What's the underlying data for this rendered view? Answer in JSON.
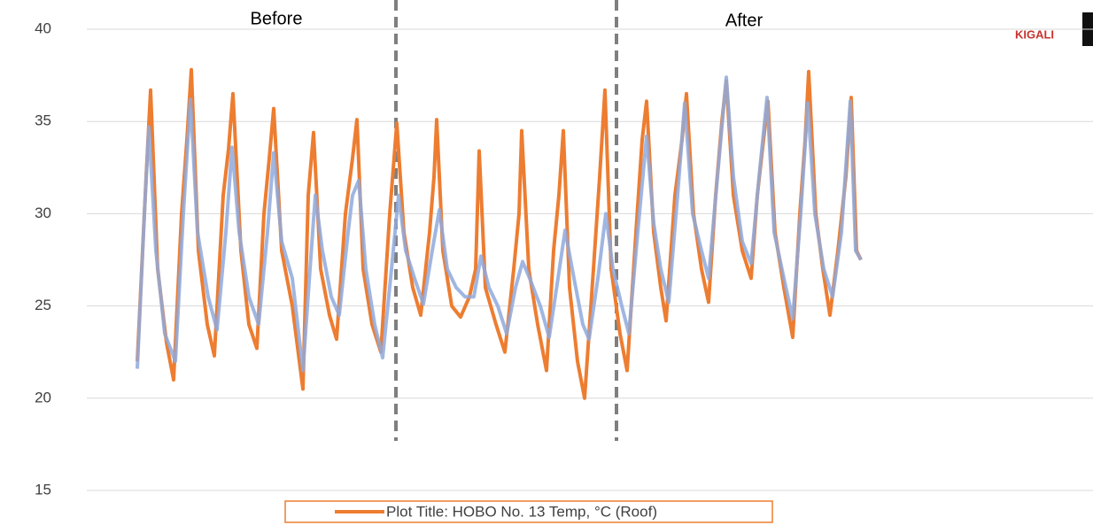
{
  "chart_data": {
    "type": "line",
    "annotations": [
      "Before",
      "After"
    ],
    "logo_text": "KIGALI",
    "legend": "Plot Title: HOBO No. 13 Temp, °C (Roof)",
    "legend_position": "bottom",
    "ylim": [
      15,
      40
    ],
    "yticks": [
      15,
      20,
      25,
      30,
      35,
      40
    ],
    "xlim": [
      -57,
      1079
    ],
    "vlines": [
      292,
      541
    ],
    "grid": true,
    "series": [
      {
        "name": "Plot Title: HOBO No. 13 Temp, °C (Roof)",
        "color": "#ed7d31",
        "x": [
          0,
          10,
          15,
          23,
          33,
          41,
          50,
          56,
          61,
          69,
          79,
          87,
          97,
          103,
          108,
          117,
          126,
          135,
          143,
          149,
          154,
          163,
          175,
          187,
          193,
          199,
          207,
          217,
          225,
          235,
          243,
          248,
          255,
          265,
          275,
          285,
          293,
          301,
          311,
          320,
          330,
          335,
          338,
          345,
          355,
          365,
          375,
          382,
          386,
          393,
          405,
          415,
          425,
          431,
          434,
          442,
          452,
          462,
          470,
          476,
          481,
          488,
          497,
          505,
          515,
          522,
          528,
          535,
          545,
          553,
          563,
          570,
          575,
          583,
          591,
          597,
          607,
          615,
          620,
          628,
          637,
          645,
          653,
          660,
          665,
          673,
          683,
          693,
          700,
          707,
          712,
          720,
          730,
          740,
          748,
          754,
          758,
          766,
          774,
          782,
          791,
          800,
          806,
          812,
          817
        ],
        "values": [
          22,
          32,
          36.7,
          27,
          23,
          21,
          30,
          34,
          37.8,
          28,
          24,
          22.3,
          31,
          33.5,
          36.5,
          28,
          24,
          22.7,
          30,
          33,
          35.7,
          28,
          25,
          20.5,
          31,
          34.4,
          27,
          24.5,
          23.2,
          30,
          33,
          35.1,
          27,
          24,
          22.5,
          30,
          34.9,
          29,
          26,
          24.5,
          29,
          32,
          35.1,
          28,
          25,
          24.4,
          25.5,
          27,
          33.4,
          26,
          24,
          22.5,
          27,
          30,
          34.5,
          27,
          24,
          21.5,
          28,
          31,
          34.5,
          26,
          22,
          20,
          27,
          32,
          36.7,
          27,
          23.5,
          21.5,
          29,
          34,
          36.1,
          29,
          26,
          24.2,
          31,
          34,
          36.5,
          30,
          27,
          25.2,
          31,
          35,
          37.2,
          31,
          28,
          26.5,
          31,
          34,
          36.1,
          29,
          26,
          23.3,
          30,
          34,
          37.7,
          30,
          27,
          24.5,
          28,
          32,
          36.3,
          28,
          27.5
        ]
      },
      {
        "color": "#8fa9dc",
        "x": [
          0,
          8,
          13,
          21,
          31,
          43,
          52,
          60,
          68,
          80,
          90,
          100,
          107,
          115,
          126,
          137,
          147,
          154,
          163,
          175,
          187,
          195,
          201,
          209,
          219,
          228,
          238,
          243,
          250,
          258,
          268,
          277,
          287,
          295,
          303,
          313,
          323,
          333,
          341,
          350,
          360,
          370,
          380,
          388,
          397,
          407,
          417,
          427,
          435,
          443,
          455,
          465,
          475,
          483,
          493,
          503,
          510,
          520,
          529,
          537,
          547,
          555,
          565,
          575,
          583,
          591,
          600,
          610,
          618,
          627,
          637,
          645,
          655,
          665,
          673,
          683,
          693,
          702,
          711,
          719,
          730,
          740,
          749,
          757,
          765,
          775,
          785,
          795,
          805,
          811,
          817
        ],
        "values": [
          21.6,
          30,
          34.7,
          28,
          23.5,
          22,
          30,
          36.2,
          29,
          25.5,
          23.7,
          29,
          33.6,
          29,
          25.5,
          24,
          29,
          33.3,
          28.5,
          26.5,
          21.5,
          27,
          31,
          28,
          25.5,
          24.5,
          29,
          31,
          31.8,
          27,
          24,
          22.2,
          27,
          31,
          28,
          26.5,
          25.1,
          28,
          30.2,
          27,
          26,
          25.5,
          25.5,
          27.7,
          26,
          25,
          23.5,
          26,
          27.4,
          26.5,
          25,
          23.3,
          26.5,
          29.1,
          26.5,
          24,
          23.2,
          26.5,
          30,
          27,
          25,
          23.5,
          29,
          34.2,
          29.5,
          27,
          25.2,
          31,
          36,
          30,
          28,
          26.5,
          32,
          37.4,
          32,
          28.5,
          27.3,
          32,
          36.3,
          29,
          26.5,
          24.3,
          30,
          36,
          30,
          27,
          25.5,
          29,
          36.1,
          28,
          27.5
        ]
      }
    ]
  }
}
